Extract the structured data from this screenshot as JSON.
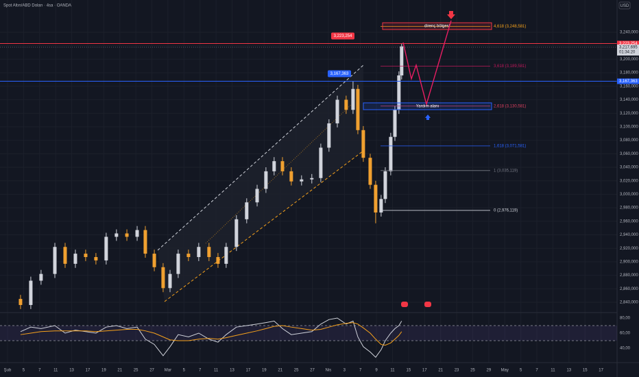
{
  "header": {
    "title": "Spot Altın/ABD Doları · 4sa · OANDA",
    "currency": "USD",
    "countdown": "01:34:20"
  },
  "chart_data": [
    {
      "type": "candlestick",
      "x": [
        0.81,
        1.45,
        2.09,
        2.95,
        3.59,
        4.23,
        4.87,
        5.51,
        6.15,
        6.79,
        7.44,
        8.08,
        8.59,
        9.15,
        9.7,
        10.13,
        10.64,
        11.28,
        11.92,
        12.56,
        13.12,
        13.63,
        14.27,
        14.91,
        15.56,
        16.11,
        16.62,
        17.14,
        17.69,
        18.33,
        18.97,
        19.53,
        20.04,
        20.56,
        21.11,
        21.54,
        21.84,
        22.18,
        22.61,
        22.95,
        23.29,
        23.55,
        23.89,
        24.15,
        24.4,
        24.57
      ],
      "open": [
        2845,
        2836,
        2872,
        2882,
        2922,
        2897,
        2912,
        2907,
        2902,
        2937,
        2942,
        2937,
        2947,
        2912,
        2892,
        2861,
        2882,
        2912,
        2907,
        2922,
        2907,
        2897,
        2922,
        2963,
        2988,
        3008,
        3034,
        3049,
        3034,
        3019,
        3022,
        3024,
        3069,
        3105,
        3140,
        3125,
        3156,
        3095,
        3054,
        3014,
        2973,
        2993,
        3034,
        3085,
        3125,
        3176
      ],
      "high": [
        2851,
        2878,
        2888,
        2928,
        2928,
        2918,
        2918,
        2913,
        2943,
        2948,
        2948,
        2953,
        2953,
        2918,
        2898,
        2888,
        2918,
        2918,
        2928,
        2928,
        2913,
        2928,
        2969,
        2994,
        3014,
        3040,
        3055,
        3055,
        3040,
        3028,
        3030,
        3075,
        3111,
        3146,
        3146,
        3167,
        3162,
        3101,
        3060,
        3020,
        2999,
        3040,
        3091,
        3131,
        3182,
        3223
      ],
      "low": [
        2830,
        2830,
        2866,
        2876,
        2891,
        2891,
        2901,
        2896,
        2896,
        2931,
        2931,
        2931,
        2906,
        2886,
        2855,
        2855,
        2876,
        2901,
        2901,
        2901,
        2891,
        2891,
        2916,
        2957,
        2982,
        3002,
        3028,
        3028,
        3013,
        3013,
        3016,
        3018,
        3063,
        3099,
        3119,
        3119,
        3089,
        3048,
        3008,
        2957,
        2967,
        2987,
        3028,
        3079,
        3119,
        3170
      ],
      "close": [
        2836,
        2872,
        2882,
        2922,
        2897,
        2912,
        2907,
        2902,
        2937,
        2942,
        2937,
        2947,
        2912,
        2892,
        2861,
        2882,
        2912,
        2907,
        2922,
        2907,
        2897,
        2922,
        2963,
        2988,
        3008,
        3034,
        3049,
        3034,
        3019,
        3022,
        3024,
        3069,
        3105,
        3140,
        3125,
        3156,
        3095,
        3054,
        3014,
        2973,
        2993,
        3034,
        3085,
        3125,
        3176,
        3219
      ],
      "up_color": "#d1d4dc",
      "down_color": "#f0a030",
      "xlim": [
        -0.47,
        38.0
      ],
      "xticks": [
        {
          "value": 0,
          "label": "Şub"
        },
        {
          "value": 1,
          "label": "5"
        },
        {
          "value": 2,
          "label": "7"
        },
        {
          "value": 3,
          "label": "11"
        },
        {
          "value": 4,
          "label": "13"
        },
        {
          "value": 5,
          "label": "17"
        },
        {
          "value": 6,
          "label": "19"
        },
        {
          "value": 7,
          "label": "21"
        },
        {
          "value": 8,
          "label": "25"
        },
        {
          "value": 9,
          "label": "27"
        },
        {
          "value": 10,
          "label": "Mar"
        },
        {
          "value": 11,
          "label": "5"
        },
        {
          "value": 12,
          "label": "7"
        },
        {
          "value": 13,
          "label": "11"
        },
        {
          "value": 14,
          "label": "13"
        },
        {
          "value": 15,
          "label": "17"
        },
        {
          "value": 16,
          "label": "19"
        },
        {
          "value": 17,
          "label": "21"
        },
        {
          "value": 18,
          "label": "25"
        },
        {
          "value": 19,
          "label": "27"
        },
        {
          "value": 20,
          "label": "Nis"
        },
        {
          "value": 21,
          "label": "3"
        },
        {
          "value": 22,
          "label": "7"
        },
        {
          "value": 23,
          "label": "9"
        },
        {
          "value": 24,
          "label": "11"
        },
        {
          "value": 25,
          "label": "15"
        },
        {
          "value": 26,
          "label": "17"
        },
        {
          "value": 27,
          "label": "21"
        },
        {
          "value": 28,
          "label": "23"
        },
        {
          "value": 29,
          "label": "25"
        },
        {
          "value": 30,
          "label": "29"
        },
        {
          "value": 31,
          "label": "May"
        },
        {
          "value": 32,
          "label": "5"
        },
        {
          "value": 33,
          "label": "7"
        },
        {
          "value": 34,
          "label": "11"
        },
        {
          "value": 35,
          "label": "13"
        },
        {
          "value": 36,
          "label": "15"
        },
        {
          "value": 37,
          "label": "17"
        }
      ],
      "ylim": [
        2825.8,
        3287.7
      ],
      "yticks": [
        {
          "value": 2840,
          "label": "2,840,000"
        },
        {
          "value": 2860,
          "label": "2,860,000"
        },
        {
          "value": 2880,
          "label": "2,880,000"
        },
        {
          "value": 2900,
          "label": "2,900,000"
        },
        {
          "value": 2920,
          "label": "2,920,000"
        },
        {
          "value": 2940,
          "label": "2,940,000"
        },
        {
          "value": 2960,
          "label": "2,960,000"
        },
        {
          "value": 2980,
          "label": "2,980,000"
        },
        {
          "value": 3000,
          "label": "3,000,000"
        },
        {
          "value": 3020,
          "label": "3,020,000"
        },
        {
          "value": 3040,
          "label": "3,040,000"
        },
        {
          "value": 3060,
          "label": "3,060,000"
        },
        {
          "value": 3080,
          "label": "3,080,000"
        },
        {
          "value": 3100,
          "label": "3,100,000"
        },
        {
          "value": 3120,
          "label": "3,120,000"
        },
        {
          "value": 3140,
          "label": "3,140,000"
        },
        {
          "value": 3160,
          "label": "3,160,000"
        },
        {
          "value": 3180,
          "label": "3,180,000"
        },
        {
          "value": 3200,
          "label": "3,200,000"
        },
        {
          "value": 3220,
          "label": "3,220,000"
        },
        {
          "value": 3240,
          "label": "3,240,000"
        }
      ],
      "grid": true,
      "price_lines": [
        {
          "value": 3223.254,
          "label": "3,223,254",
          "color": "#f23645"
        },
        {
          "value": 3217.695,
          "label": "3,217,695",
          "color": "#787b86"
        },
        {
          "value": 3167.363,
          "label": "3,167,363",
          "color": "#2962ff"
        }
      ],
      "fib_levels": [
        {
          "value": 3248.581,
          "label": "4,618 (3,248,581)",
          "color": "#f7a21b"
        },
        {
          "value": 3189.581,
          "label": "3,618 (3,189,581)",
          "color": "#c2185b"
        },
        {
          "value": 3130.581,
          "label": "2,618 (3,130,581)",
          "color": "#e04060"
        },
        {
          "value": 3071.581,
          "label": "1,618 (3,071,581)",
          "color": "#2962ff"
        },
        {
          "value": 3035.119,
          "label": "1 (3,035,119)",
          "color": "#787b86"
        },
        {
          "value": 2976.119,
          "label": "0 (2,976,119)",
          "color": "#d1d4dc"
        }
      ],
      "zones": [
        {
          "label": "direnç bölgesi",
          "range": [
            3244,
            3254
          ],
          "color": "#f23645"
        },
        {
          "label": "Yardım alanı",
          "range": [
            3125.3,
            3135.4
          ],
          "color": "#2962ff"
        }
      ]
    },
    {
      "type": "line",
      "x": [
        0.81,
        1.45,
        2.09,
        2.95,
        3.59,
        4.23,
        4.87,
        5.51,
        6.15,
        6.79,
        7.44,
        8.08,
        8.59,
        9.15,
        9.7,
        10.13,
        10.64,
        11.28,
        11.92,
        12.56,
        13.12,
        13.63,
        14.27,
        14.91,
        15.56,
        16.11,
        16.62,
        17.14,
        17.69,
        18.33,
        18.97,
        19.53,
        20.04,
        20.56,
        21.11,
        21.54,
        21.84,
        22.18,
        22.61,
        22.95,
        23.29,
        23.55,
        23.89,
        24.15,
        24.4,
        24.57
      ],
      "series": [
        {
          "color": "#d1d4dc",
          "values": [
            62,
            68,
            66,
            70,
            60,
            64,
            62,
            60,
            68,
            70,
            66,
            68,
            52,
            45,
            30,
            42,
            58,
            55,
            60,
            52,
            48,
            58,
            68,
            70,
            72,
            74,
            76,
            66,
            58,
            60,
            62,
            72,
            78,
            80,
            72,
            76,
            55,
            42,
            35,
            28,
            38,
            50,
            60,
            66,
            70,
            76
          ]
        },
        {
          "color": "#f7a21b",
          "values": [
            58,
            60,
            62,
            63,
            63,
            63,
            63,
            62,
            63,
            64,
            65,
            65,
            63,
            60,
            55,
            51,
            50,
            50,
            52,
            53,
            52,
            54,
            57,
            60,
            63,
            66,
            69,
            70,
            68,
            66,
            64,
            65,
            68,
            71,
            73,
            74,
            72,
            67,
            60,
            52,
            45,
            44,
            47,
            52,
            57,
            62
          ]
        }
      ],
      "xlim": [
        -0.47,
        38.0
      ],
      "ylim": [
        21.8,
        85.45
      ],
      "yticks": [
        {
          "value": 40,
          "label": "40,00"
        },
        {
          "value": 60,
          "label": "60,00"
        },
        {
          "value": 80,
          "label": "80,00"
        }
      ],
      "bands": [
        70,
        50
      ]
    }
  ]
}
